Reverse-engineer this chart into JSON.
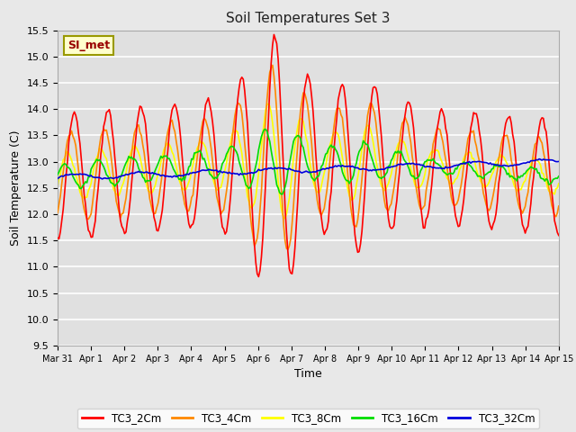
{
  "title": "Soil Temperatures Set 3",
  "xlabel": "Time",
  "ylabel": "Soil Temperature (C)",
  "ylim": [
    9.5,
    15.5
  ],
  "fig_bg_color": "#e8e8e8",
  "plot_bg_color": "#e0e0e0",
  "grid_color": "#ffffff",
  "series_colors": {
    "TC3_2Cm": "#ff0000",
    "TC3_4Cm": "#ff8800",
    "TC3_8Cm": "#ffff00",
    "TC3_16Cm": "#00dd00",
    "TC3_32Cm": "#0000dd"
  },
  "legend_label": "SI_met",
  "legend_box_facecolor": "#ffffcc",
  "legend_box_edge": "#999900",
  "tick_labels": [
    "Mar 31",
    "Apr 1",
    "Apr 2",
    "Apr 3",
    "Apr 4",
    "Apr 5",
    "Apr 6",
    "Apr 7",
    "Apr 8",
    "Apr 9",
    "Apr 10",
    "Apr 11",
    "Apr 12",
    "Apr 13",
    "Apr 14",
    "Apr 15"
  ],
  "yticks": [
    9.5,
    10.0,
    10.5,
    11.0,
    11.5,
    12.0,
    12.5,
    13.0,
    13.5,
    14.0,
    14.5,
    15.0,
    15.5
  ]
}
